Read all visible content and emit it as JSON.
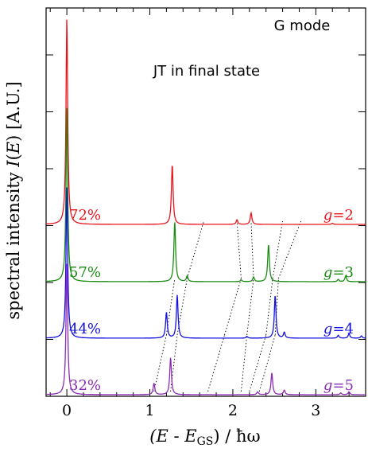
{
  "chart_data": {
    "type": "line",
    "title": "",
    "xlabel": "(E - E_GS) / ħω",
    "ylabel": "spectral intensity  I(E)  [A.U.]",
    "xlim": [
      -0.25,
      3.6
    ],
    "x_ticks": [
      "0",
      "1",
      "2",
      "3"
    ],
    "annotations": [
      "G mode",
      "JT in final state"
    ],
    "series": [
      {
        "name": "g=2",
        "g_label": "g=2",
        "percent_label": "72%",
        "color": "#e8141c",
        "peaks": [
          {
            "x": 0.0,
            "height": 3.6
          },
          {
            "x": 1.27,
            "height": 1.05
          },
          {
            "x": 2.05,
            "height": 0.08
          },
          {
            "x": 2.22,
            "height": 0.2
          },
          {
            "x": 3.2,
            "height": 0.02
          }
        ]
      },
      {
        "name": "g=3",
        "g_label": "g=3",
        "percent_label": "57%",
        "color": "#1a8c12",
        "peaks": [
          {
            "x": 0.0,
            "height": 3.05
          },
          {
            "x": 1.3,
            "height": 1.05
          },
          {
            "x": 1.45,
            "height": 0.1
          },
          {
            "x": 2.1,
            "height": 0.03
          },
          {
            "x": 2.25,
            "height": 0.08
          },
          {
            "x": 2.43,
            "height": 0.65
          },
          {
            "x": 3.27,
            "height": 0.04
          },
          {
            "x": 3.36,
            "height": 0.1
          }
        ]
      },
      {
        "name": "g=4",
        "g_label": "g=4",
        "percent_label": "44%",
        "color": "#1410e0",
        "peaks": [
          {
            "x": 0.0,
            "height": 2.65
          },
          {
            "x": 1.2,
            "height": 0.45
          },
          {
            "x": 1.33,
            "height": 0.75
          },
          {
            "x": 2.17,
            "height": 0.03
          },
          {
            "x": 2.51,
            "height": 0.75
          },
          {
            "x": 2.62,
            "height": 0.1
          },
          {
            "x": 3.27,
            "height": 0.05
          },
          {
            "x": 3.4,
            "height": 0.08
          },
          {
            "x": 3.55,
            "height": 0.04
          }
        ]
      },
      {
        "name": "g=5",
        "g_label": "g=5",
        "percent_label": "32%",
        "color": "#8c2cb4",
        "peaks": [
          {
            "x": 0.0,
            "height": 2.3
          },
          {
            "x": 1.05,
            "height": 0.2
          },
          {
            "x": 1.25,
            "height": 0.65
          },
          {
            "x": 2.3,
            "height": 0.05
          },
          {
            "x": 2.47,
            "height": 0.38
          },
          {
            "x": 2.62,
            "height": 0.08
          },
          {
            "x": 3.3,
            "height": 0.03
          },
          {
            "x": 3.4,
            "height": 0.05
          }
        ]
      }
    ],
    "guide_lines": [
      {
        "from_series": "g=5",
        "from_x": 1.05,
        "to_series": "g=4",
        "to_x": 1.2
      },
      {
        "from_series": "g=4",
        "from_x": 1.2,
        "to_series": "g=3",
        "to_x": 1.3
      },
      {
        "from_series": "g=5",
        "from_x": 1.25,
        "to_series": "g=4",
        "to_x": 1.33
      },
      {
        "from_series": "g=4",
        "from_x": 1.33,
        "to_series": "g=3",
        "to_x": 1.45
      },
      {
        "from_series": "g=3",
        "from_x": 1.45,
        "to_series": "g=2",
        "to_x": 1.65
      },
      {
        "from_series": "g=5",
        "from_x": 1.7,
        "to_series": "g=4",
        "to_x": 1.9
      },
      {
        "from_series": "g=4",
        "from_x": 1.9,
        "to_series": "g=3",
        "to_x": 2.1
      },
      {
        "from_series": "g=3",
        "from_x": 2.1,
        "to_series": "g=2",
        "to_x": 2.05
      },
      {
        "from_series": "g=5",
        "from_x": 2.1,
        "to_series": "g=4",
        "to_x": 2.17
      },
      {
        "from_series": "g=4",
        "from_x": 2.17,
        "to_series": "g=3",
        "to_x": 2.25
      },
      {
        "from_series": "g=3",
        "from_x": 2.25,
        "to_series": "g=2",
        "to_x": 2.22
      },
      {
        "from_series": "g=5",
        "from_x": 2.2,
        "to_series": "g=4",
        "to_x": 2.4
      },
      {
        "from_series": "g=4",
        "from_x": 2.4,
        "to_series": "g=3",
        "to_x": 2.48
      },
      {
        "from_series": "g=3",
        "from_x": 2.48,
        "to_series": "g=2",
        "to_x": 2.6
      },
      {
        "from_series": "g=5",
        "from_x": 2.32,
        "to_series": "g=4",
        "to_x": 2.51
      },
      {
        "from_series": "g=4",
        "from_x": 2.51,
        "to_series": "g=3",
        "to_x": 2.55
      },
      {
        "from_series": "g=3",
        "from_x": 2.55,
        "to_series": "g=2",
        "to_x": 2.82
      }
    ]
  }
}
